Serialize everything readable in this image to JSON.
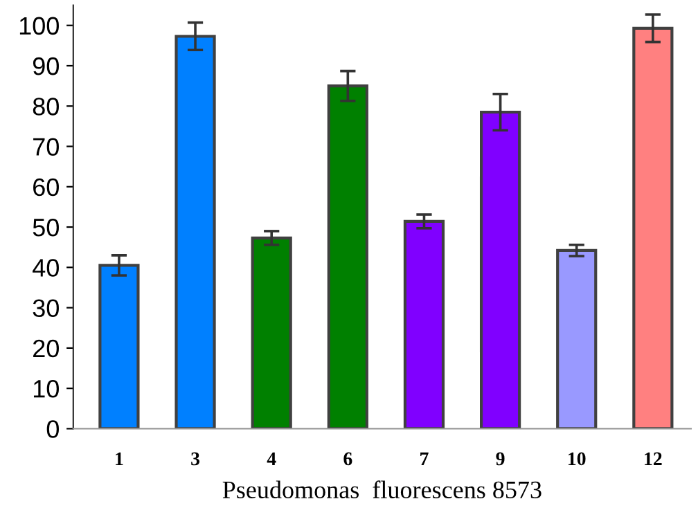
{
  "chart_data": {
    "type": "bar",
    "xlabel": "Pseudomonas  fluorescens 8573",
    "categories": [
      "1",
      "3",
      "4",
      "6",
      "7",
      "9",
      "10",
      "12"
    ],
    "values": [
      40.5,
      97.3,
      47.3,
      85,
      51.4,
      78.5,
      44.2,
      99.3
    ],
    "errors": [
      2.5,
      3.4,
      1.7,
      3.7,
      1.7,
      4.5,
      1.4,
      3.4
    ],
    "colors": [
      "#0080ff",
      "#0080ff",
      "#008000",
      "#008000",
      "#8000ff",
      "#8000ff",
      "#9999ff",
      "#ff8080"
    ],
    "ylim": [
      0,
      105
    ],
    "yticks": [
      0,
      10,
      20,
      30,
      40,
      50,
      60,
      70,
      80,
      90,
      100
    ],
    "grid": false,
    "legend": false
  }
}
